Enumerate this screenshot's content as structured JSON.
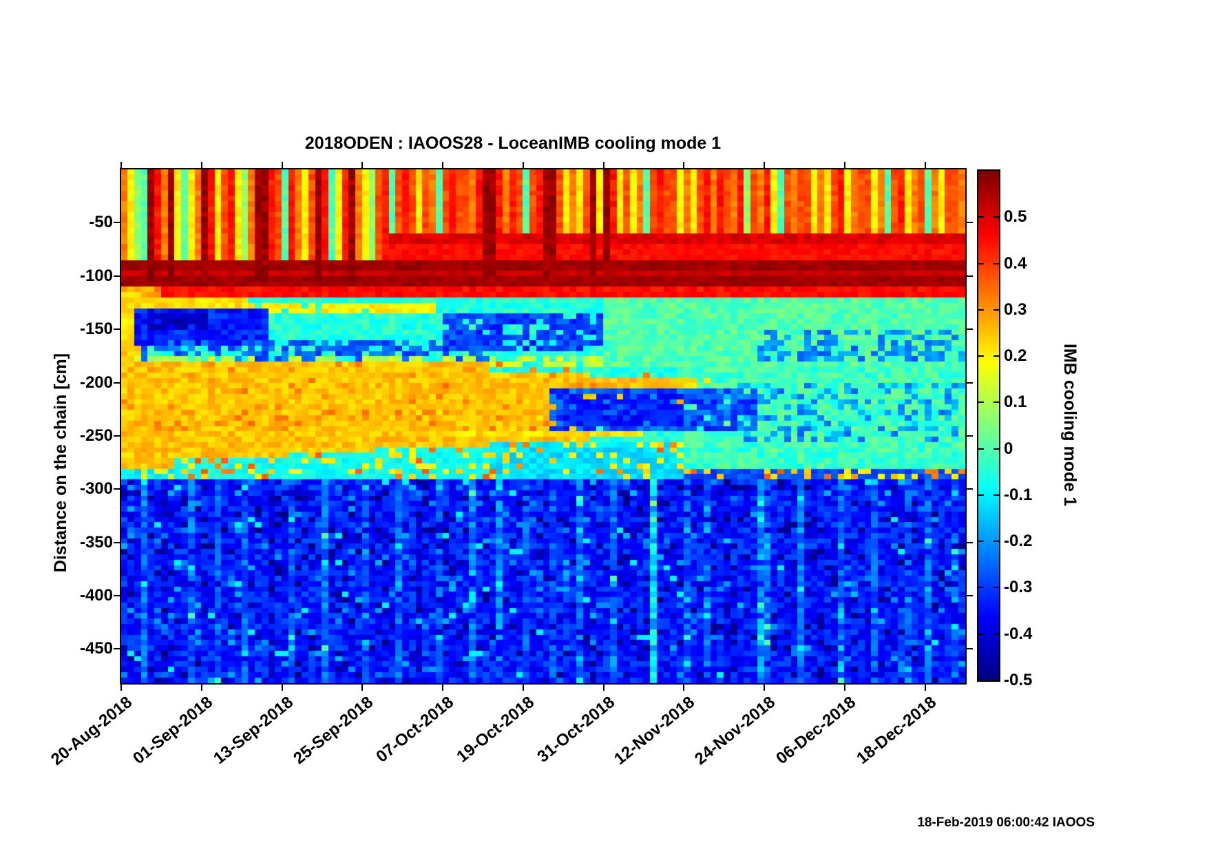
{
  "title": "2018ODEN : IAOOS28 - LoceanIMB cooling mode 1",
  "footer": {
    "timestamp": "18-Feb-2019 06:00:42 IAOOS"
  },
  "chart_data": {
    "type": "heatmap",
    "title": "2018ODEN : IAOOS28 - LoceanIMB cooling mode 1",
    "ylabel": "Distance on the chain [cm]",
    "colorbar_label": "IMB cooling mode 1",
    "colormap": "jet",
    "value_range": [
      -0.5,
      0.6
    ],
    "ylim_cm": [
      0,
      -482
    ],
    "n_days": 126,
    "n_rows": 96,
    "row_cm": 5,
    "x_ticks": [
      {
        "label": "20-Aug-2018",
        "day": 0
      },
      {
        "label": "01-Sep-2018",
        "day": 12
      },
      {
        "label": "13-Sep-2018",
        "day": 24
      },
      {
        "label": "25-Sep-2018",
        "day": 36
      },
      {
        "label": "07-Oct-2018",
        "day": 48
      },
      {
        "label": "19-Oct-2018",
        "day": 60
      },
      {
        "label": "31-Oct-2018",
        "day": 72
      },
      {
        "label": "12-Nov-2018",
        "day": 84
      },
      {
        "label": "24-Nov-2018",
        "day": 96
      },
      {
        "label": "06-Dec-2018",
        "day": 108
      },
      {
        "label": "18-Dec-2018",
        "day": 120
      }
    ],
    "y_ticks": [
      {
        "label": "-50",
        "cm": 50
      },
      {
        "label": "-100",
        "cm": 100
      },
      {
        "label": "-150",
        "cm": 150
      },
      {
        "label": "-200",
        "cm": 200
      },
      {
        "label": "-250",
        "cm": 250
      },
      {
        "label": "-300",
        "cm": 300
      },
      {
        "label": "-350",
        "cm": 350
      },
      {
        "label": "-400",
        "cm": 400
      },
      {
        "label": "-450",
        "cm": 450
      }
    ],
    "colorbar_ticks": [
      {
        "label": "0.5",
        "v": 0.5
      },
      {
        "label": "0.4",
        "v": 0.4
      },
      {
        "label": "0.3",
        "v": 0.3
      },
      {
        "label": "0.2",
        "v": 0.2
      },
      {
        "label": "0.1",
        "v": 0.1
      },
      {
        "label": "0",
        "v": 0.0
      },
      {
        "label": "-0.1",
        "v": -0.1
      },
      {
        "label": "-0.2",
        "v": -0.2
      },
      {
        "label": "-0.3",
        "v": -0.3
      },
      {
        "label": "-0.4",
        "v": -0.4
      },
      {
        "label": "-0.5",
        "v": -0.5
      }
    ],
    "grid": {
      "seed": 20190218,
      "stripe_deep_value": 0.55,
      "stripe_left_days": 40,
      "bands": [
        {
          "z": [
            0,
            58
          ],
          "base": 0.38,
          "noise": 0.03
        },
        {
          "z": [
            0,
            58
          ],
          "d": [
            40,
            126
          ],
          "base": 0.37,
          "noise": 0.035
        },
        {
          "z": [
            58,
            86
          ],
          "base": 0.45,
          "noise": 0.025
        },
        {
          "z": [
            52,
            68
          ],
          "d": [
            38,
            126
          ],
          "base": 0.5,
          "noise": 0.03
        },
        {
          "z": [
            86,
            112
          ],
          "base": 0.565,
          "noise": 0.02
        },
        {
          "z": [
            96,
            102
          ],
          "base": 0.52,
          "noise": 0.02
        },
        {
          "z": [
            112,
            118
          ],
          "base": 0.45,
          "noise": 0.03
        },
        {
          "z": [
            112,
            118
          ],
          "d": [
            0,
            6
          ],
          "base": 0.3,
          "noise": 0.05
        },
        {
          "z": [
            118,
            186
          ],
          "base": -0.05,
          "noise": 0.05
        },
        {
          "z": [
            118,
            186
          ],
          "d": [
            72,
            126
          ],
          "base": 0.0,
          "noise": 0.05
        },
        {
          "z": [
            186,
            290
          ],
          "base": -0.05,
          "noise": 0.05
        },
        {
          "z": [
            186,
            290
          ],
          "d": [
            84,
            126
          ],
          "base": -0.02,
          "noise": 0.06
        },
        {
          "z": [
            290,
            482
          ],
          "base": -0.34,
          "noise": 0.07
        }
      ],
      "features": [
        {
          "d": [
            0,
            3
          ],
          "z": [
            116,
            290
          ],
          "v": 0.24,
          "noise": 0.05
        },
        {
          "d": [
            0,
            19
          ],
          "z": [
            119,
            158
          ],
          "v": 0.22,
          "noise": 0.04
        },
        {
          "d": [
            10,
            19
          ],
          "z": [
            146,
            158
          ],
          "v": -0.05,
          "noise": 0.05
        },
        {
          "d": [
            19,
            47
          ],
          "z": [
            123,
            134
          ],
          "v": 0.2,
          "noise": 0.04,
          "density": 0.9
        },
        {
          "d": [
            2,
            22
          ],
          "z": [
            128,
            165
          ],
          "v": -0.33,
          "noise": 0.06
        },
        {
          "d": [
            4,
            13
          ],
          "z": [
            133,
            152
          ],
          "v": -0.43,
          "noise": 0.04,
          "density": 0.8
        },
        {
          "d": [
            3,
            55
          ],
          "z": [
            162,
            184
          ],
          "v": -0.26,
          "noise": 0.06,
          "density": 0.55
        },
        {
          "d": [
            48,
            72
          ],
          "z": [
            136,
            172
          ],
          "v": -0.29,
          "noise": 0.06,
          "density": 0.8
        },
        {
          "d": [
            95,
            126
          ],
          "z": [
            148,
            182
          ],
          "v": -0.22,
          "noise": 0.06,
          "density": 0.45
        },
        {
          "d": [
            0,
            72
          ],
          "z": [
            176,
            184
          ],
          "v": 0.12,
          "noise": 0.05,
          "density": 0.6
        },
        {
          "d": [
            0,
            8
          ],
          "z": [
            180,
            282
          ],
          "v": 0.25,
          "noise": 0.04
        },
        {
          "d": [
            8,
            25
          ],
          "z": [
            180,
            272
          ],
          "v": 0.25,
          "noise": 0.04
        },
        {
          "d": [
            25,
            38
          ],
          "z": [
            180,
            264
          ],
          "v": 0.25,
          "noise": 0.04
        },
        {
          "d": [
            38,
            55
          ],
          "z": [
            180,
            258
          ],
          "v": 0.25,
          "noise": 0.04
        },
        {
          "d": [
            55,
            70
          ],
          "z": [
            190,
            255
          ],
          "v": 0.25,
          "noise": 0.04
        },
        {
          "d": [
            70,
            84
          ],
          "z": [
            195,
            238
          ],
          "v": 0.25,
          "noise": 0.04
        },
        {
          "d": [
            84,
            88
          ],
          "z": [
            197,
            212
          ],
          "v": 0.23,
          "noise": 0.04,
          "density": 0.7
        },
        {
          "d": [
            0,
            80
          ],
          "z": [
            182,
            246
          ],
          "v": 0.32,
          "noise": 0.03,
          "density": 0.09
        },
        {
          "d": [
            8,
            25
          ],
          "z": [
            272,
            290
          ],
          "mix": [
            [
              0.15,
              0.2
            ],
            [
              0.06,
              0.33
            ],
            [
              0.79,
              -0.07
            ]
          ]
        },
        {
          "d": [
            25,
            38
          ],
          "z": [
            264,
            290
          ],
          "mix": [
            [
              0.15,
              0.2
            ],
            [
              0.06,
              0.33
            ],
            [
              0.79,
              -0.07
            ]
          ]
        },
        {
          "d": [
            38,
            55
          ],
          "z": [
            258,
            290
          ],
          "mix": [
            [
              0.15,
              0.2
            ],
            [
              0.06,
              0.33
            ],
            [
              0.79,
              -0.07
            ]
          ]
        },
        {
          "d": [
            55,
            84
          ],
          "z": [
            255,
            290
          ],
          "mix": [
            [
              0.12,
              0.2
            ],
            [
              0.05,
              0.33
            ],
            [
              0.83,
              -0.12
            ]
          ]
        },
        {
          "d": [
            0,
            8
          ],
          "z": [
            282,
            290
          ],
          "mix": [
            [
              0.4,
              0.15
            ],
            [
              0.6,
              -0.1
            ]
          ]
        },
        {
          "d": [
            84,
            126
          ],
          "z": [
            278,
            290
          ],
          "mix": [
            [
              0.25,
              0.22
            ],
            [
              0.08,
              0.33
            ],
            [
              0.67,
              -0.28
            ]
          ]
        },
        {
          "d": [
            64,
            95
          ],
          "z": [
            205,
            243
          ],
          "v": -0.28,
          "noise": 0.07,
          "density": 0.85
        },
        {
          "d": [
            66,
            84
          ],
          "z": [
            208,
            240
          ],
          "v": -0.34,
          "noise": 0.05,
          "density": 0.7
        },
        {
          "d": [
            50,
            78
          ],
          "z": [
            244,
            252
          ],
          "v": 0.22,
          "noise": 0.04,
          "density": 0.85
        },
        {
          "d": [
            88,
            126
          ],
          "z": [
            200,
            255
          ],
          "v": -0.2,
          "noise": 0.06,
          "density": 0.3
        }
      ],
      "surface_stripes": [
        0.33,
        0.2,
        0.07,
        0.0,
        0.57,
        0.44,
        0.33,
        0.57,
        0.2,
        0.0,
        0.2,
        0.33,
        0.57,
        0.44,
        0.2,
        0.38,
        0.44,
        0.2,
        0.07,
        0.33,
        0.57,
        0.57,
        0.44,
        0.38,
        0.0,
        0.44,
        0.33,
        0.2,
        0.38,
        0.57,
        0.44,
        0.0,
        0.2,
        0.44,
        0.57,
        0.33,
        0.2,
        0.07,
        0.38,
        0.44,
        0.0,
        0.38,
        0.44,
        0.38,
        0.2,
        0.38,
        0.33,
        0.0,
        0.38,
        0.44,
        0.38,
        0.38,
        0.33,
        0.44,
        0.57,
        0.57,
        0.44,
        0.33,
        0.44,
        0.38,
        0.0,
        0.38,
        0.44,
        0.57,
        0.57,
        0.38,
        0.2,
        0.33,
        0.2,
        0.38,
        0.57,
        0.2,
        0.57,
        0.44,
        0.2,
        0.38,
        0.2,
        0.33,
        0.0,
        0.38,
        0.44,
        0.38,
        0.38,
        0.2,
        0.33,
        0.2,
        0.38,
        0.44,
        0.33,
        0.44,
        0.38,
        0.33,
        0.44,
        0.07,
        0.38,
        0.33,
        0.44,
        0.2,
        0.0,
        0.38,
        0.33,
        0.38,
        0.38,
        0.2,
        0.33,
        0.2,
        0.38,
        0.44,
        0.2,
        0.33,
        0.38,
        0.38,
        0.2,
        0.33,
        0.0,
        0.38,
        0.44,
        0.2,
        0.33,
        0.38,
        0.0,
        0.33,
        0.2,
        0.38,
        0.38,
        0.33
      ],
      "deep": {
        "z_start": 290,
        "p_navy": 0.08,
        "v_navy": -0.47,
        "p_light": 0.05,
        "v_light": -0.2,
        "p_cyan": 0.015,
        "v_cyan": -0.1,
        "columns": {
          "3": 0.1,
          "6": -0.05,
          "10": 0.09,
          "14": 0.07,
          "18": 0.08,
          "22": -0.04,
          "25": 0.07,
          "30": 0.1,
          "36": 0.06,
          "41": 0.08,
          "44": -0.04,
          "47": 0.06,
          "52": 0.1,
          "56": 0.12,
          "60": 0.07,
          "64": 0.06,
          "68": 0.09,
          "73": 0.1,
          "79": 0.24,
          "84": 0.06,
          "87": 0.08,
          "90": -0.04,
          "95": 0.14,
          "96": 0.1,
          "101": 0.12,
          "107": 0.08,
          "112": 0.07,
          "117": 0.06,
          "120": 0.09,
          "124": 0.07
        }
      }
    }
  }
}
